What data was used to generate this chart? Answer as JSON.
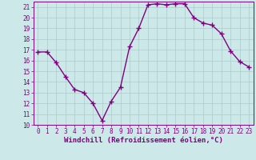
{
  "x": [
    0,
    1,
    2,
    3,
    4,
    5,
    6,
    7,
    8,
    9,
    10,
    11,
    12,
    13,
    14,
    15,
    16,
    17,
    18,
    19,
    20,
    21,
    22,
    23
  ],
  "y": [
    16.8,
    16.8,
    15.8,
    14.5,
    13.3,
    13.0,
    12.0,
    10.4,
    12.2,
    13.5,
    17.3,
    19.0,
    21.2,
    21.3,
    21.2,
    21.3,
    21.3,
    20.0,
    19.5,
    19.3,
    18.5,
    16.9,
    15.9,
    15.4
  ],
  "line_color": "#800080",
  "marker": "+",
  "markersize": 4,
  "linewidth": 1.0,
  "bg_color": "#cce8e8",
  "grid_color": "#aacccc",
  "tick_color": "#800080",
  "label_color": "#800080",
  "xlabel": "Windchill (Refroidissement éolien,°C)",
  "ylabel": "",
  "xlim": [
    -0.5,
    23.5
  ],
  "ylim": [
    10,
    21.5
  ],
  "yticks": [
    10,
    11,
    12,
    13,
    14,
    15,
    16,
    17,
    18,
    19,
    20,
    21
  ],
  "xticks": [
    0,
    1,
    2,
    3,
    4,
    5,
    6,
    7,
    8,
    9,
    10,
    11,
    12,
    13,
    14,
    15,
    16,
    17,
    18,
    19,
    20,
    21,
    22,
    23
  ],
  "tick_fontsize": 5.5,
  "xlabel_fontsize": 6.5
}
